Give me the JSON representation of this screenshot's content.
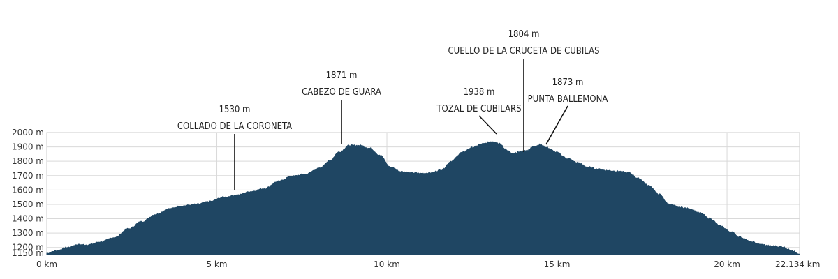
{
  "chart_data": {
    "type": "area",
    "title": "",
    "xlabel": "",
    "ylabel": "",
    "color": "#1f4663",
    "x_unit": "km",
    "y_unit": "m",
    "xlim": [
      0,
      22.134
    ],
    "ylim": [
      1150,
      2000
    ],
    "x_ticks": [
      {
        "value": 0,
        "label": "0 km"
      },
      {
        "value": 5,
        "label": "5 km"
      },
      {
        "value": 10,
        "label": "10 km"
      },
      {
        "value": 15,
        "label": "15 km"
      },
      {
        "value": 20,
        "label": "20 km"
      },
      {
        "value": 22.134,
        "label": "22.134 km"
      }
    ],
    "y_ticks": [
      {
        "value": 1150,
        "label": "1150 m"
      },
      {
        "value": 1200,
        "label": "1200 m"
      },
      {
        "value": 1300,
        "label": "1300 m"
      },
      {
        "value": 1400,
        "label": "1400 m"
      },
      {
        "value": 1500,
        "label": "1500 m"
      },
      {
        "value": 1600,
        "label": "1600 m"
      },
      {
        "value": 1700,
        "label": "1700 m"
      },
      {
        "value": 1800,
        "label": "1800 m"
      },
      {
        "value": 1900,
        "label": "1900 m"
      },
      {
        "value": 2000,
        "label": "2000 m"
      }
    ],
    "grid": true,
    "series": [
      {
        "x": [
          0,
          0.3,
          0.6,
          0.9,
          1.2,
          1.6,
          2.0,
          2.4,
          2.8,
          3.2,
          3.6,
          4.0,
          4.4,
          4.8,
          5.2,
          5.6,
          6.0,
          6.4,
          6.8,
          7.2,
          7.6,
          8.0,
          8.3,
          8.6,
          8.9,
          9.2,
          9.5,
          9.8,
          10.1,
          10.4,
          10.7,
          11.0,
          11.3,
          11.6,
          11.9,
          12.2,
          12.5,
          12.8,
          13.1,
          13.3,
          13.5,
          13.7,
          13.9,
          14.1,
          14.3,
          14.5,
          14.7,
          15.0,
          15.3,
          15.6,
          15.9,
          16.2,
          16.5,
          16.8,
          17.1,
          17.4,
          17.7,
          18.0,
          18.3,
          18.6,
          18.9,
          19.2,
          19.5,
          19.8,
          20.1,
          20.4,
          20.7,
          21.0,
          21.3,
          21.6,
          21.9,
          22.134
        ],
        "y": [
          1160,
          1178,
          1200,
          1220,
          1218,
          1240,
          1270,
          1330,
          1380,
          1430,
          1470,
          1490,
          1500,
          1520,
          1550,
          1565,
          1590,
          1610,
          1660,
          1695,
          1710,
          1750,
          1800,
          1865,
          1910,
          1910,
          1890,
          1840,
          1760,
          1730,
          1720,
          1715,
          1720,
          1740,
          1800,
          1860,
          1895,
          1920,
          1938,
          1925,
          1880,
          1850,
          1865,
          1873,
          1900,
          1915,
          1895,
          1860,
          1820,
          1790,
          1760,
          1745,
          1735,
          1730,
          1720,
          1680,
          1630,
          1570,
          1500,
          1480,
          1470,
          1440,
          1400,
          1350,
          1310,
          1270,
          1240,
          1220,
          1210,
          1205,
          1180,
          1150
        ]
      }
    ],
    "annotations": [
      {
        "x": 5.5,
        "y": 1600,
        "elevation": "1530 m",
        "name": "COLLADO DE LA CORONETA"
      },
      {
        "x": 8.7,
        "y": 1910,
        "elevation": "1871 m",
        "name": "CABEZO DE GUARA"
      },
      {
        "x": 13.2,
        "y": 1925,
        "elevation": "1938 m",
        "name": "TOZAL DE CUBILARS"
      },
      {
        "x": 14.0,
        "y": 1850,
        "elevation": "1804 m",
        "name": "CUELLO DE LA CRUCETA DE CUBILAS"
      },
      {
        "x": 14.7,
        "y": 1900,
        "elevation": "1873 m",
        "name": "PUNTA BALLEMONA"
      }
    ]
  }
}
